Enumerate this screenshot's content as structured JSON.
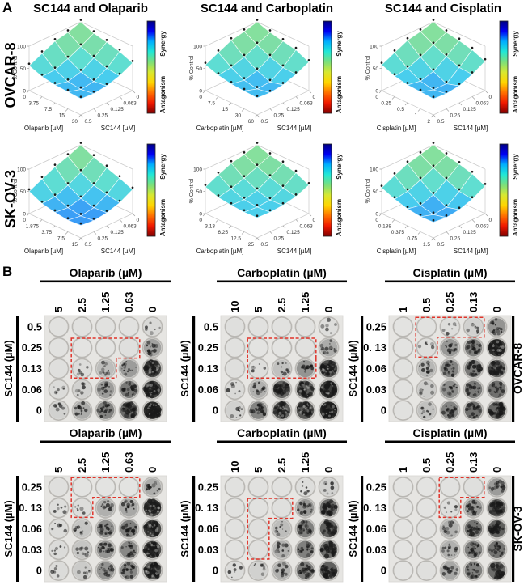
{
  "labels": {
    "panel_a": "A",
    "panel_b": "B"
  },
  "colors": {
    "highlight_dash": "#e0342b",
    "surface_mesh_line": "rgba(255,255,255,0.8)",
    "axis_line": "#c9c9c9",
    "plate_bg": "#e6e5e2",
    "well_ring": "#bfbdb9",
    "well_fill_light": "#ebeae7"
  },
  "chart_data": {
    "panel_a": {
      "type": "surface",
      "row_labels": [
        "OVCAR-8",
        "SK-OV-3"
      ],
      "titles": [
        "SC144 and Olaparib",
        "SC144 and Carboplatin",
        "SC144 and Cisplatin"
      ],
      "z_axis": {
        "label": "% Control",
        "ticks": [
          "0",
          "50",
          "100"
        ],
        "range": [
          0,
          100
        ]
      },
      "sc144_axis": {
        "label": "SC144 [µM]",
        "ticks": [
          "0",
          "0.063",
          "0.125",
          "0.25",
          "0.5"
        ]
      },
      "colorbar": {
        "top_label": "Synergy",
        "bottom_label": "Antagonism",
        "gradient_top_to_bottom": [
          "#00007F",
          "#0000F5",
          "#00AFFF",
          "#22E8D5",
          "#7BE07C",
          "#D8E830",
          "#FFD500",
          "#FF7000",
          "#F01800",
          "#800000"
        ]
      },
      "surface_colormap": {
        "values": [
          100,
          78,
          58,
          42,
          28,
          12
        ],
        "rgb": [
          [
            140,
            225,
            150
          ],
          [
            126,
            222,
            166
          ],
          [
            95,
            222,
            210
          ],
          [
            72,
            205,
            238
          ],
          [
            60,
            165,
            245
          ],
          [
            48,
            112,
            250
          ]
        ]
      },
      "plots": [
        {
          "cell_line": "OVCAR-8",
          "drug": "Olaparib",
          "drug_axis_label": "Olaparib [µM]",
          "drug_ticks": [
            "0",
            "3.75",
            "7.5",
            "15",
            "30"
          ],
          "percent_control_grid": [
            [
              100,
              90,
              84,
              70,
              56
            ],
            [
              88,
              72,
              58,
              47,
              45
            ],
            [
              82,
              60,
              42,
              34,
              40
            ],
            [
              74,
              50,
              34,
              30,
              38
            ],
            [
              62,
              47,
              38,
              34,
              36
            ]
          ]
        },
        {
          "cell_line": "OVCAR-8",
          "drug": "Carboplatin",
          "drug_axis_label": "Carboplatin [µM]",
          "drug_ticks": [
            "0",
            "7.5",
            "15",
            "30",
            "60"
          ],
          "percent_control_grid": [
            [
              100,
              92,
              86,
              72,
              58
            ],
            [
              90,
              76,
              62,
              52,
              48
            ],
            [
              84,
              62,
              45,
              37,
              42
            ],
            [
              78,
              52,
              33,
              31,
              40
            ],
            [
              64,
              50,
              40,
              36,
              38
            ]
          ]
        },
        {
          "cell_line": "OVCAR-8",
          "drug": "Cisplatin",
          "drug_axis_label": "Cisplatin [µM]",
          "drug_ticks": [
            "0",
            "0.25",
            "0.5",
            "1",
            "2"
          ],
          "percent_control_grid": [
            [
              100,
              92,
              86,
              72,
              58
            ],
            [
              90,
              76,
              62,
              50,
              46
            ],
            [
              85,
              63,
              43,
              35,
              40
            ],
            [
              78,
              52,
              29,
              29,
              38
            ],
            [
              66,
              50,
              38,
              34,
              36
            ]
          ]
        },
        {
          "cell_line": "SK-OV-3",
          "drug": "Olaparib",
          "drug_axis_label": "Olaparib [µM]",
          "drug_ticks": [
            "0",
            "1.875",
            "3.75",
            "7.5",
            "15"
          ],
          "percent_control_grid": [
            [
              100,
              88,
              78,
              64,
              50
            ],
            [
              86,
              66,
              50,
              38,
              36
            ],
            [
              76,
              50,
              34,
              27,
              30
            ],
            [
              66,
              43,
              27,
              22,
              26
            ],
            [
              54,
              38,
              29,
              25,
              28
            ]
          ]
        },
        {
          "cell_line": "SK-OV-3",
          "drug": "Carboplatin",
          "drug_axis_label": "Carboplatin [µM]",
          "drug_ticks": [
            "0",
            "3.13",
            "6.25",
            "12.5",
            "25"
          ],
          "percent_control_grid": [
            [
              100,
              92,
              86,
              74,
              60
            ],
            [
              90,
              78,
              66,
              56,
              50
            ],
            [
              85,
              68,
              52,
              45,
              46
            ],
            [
              78,
              58,
              44,
              42,
              44
            ],
            [
              64,
              52,
              46,
              44,
              45
            ]
          ]
        },
        {
          "cell_line": "SK-OV-3",
          "drug": "Cisplatin",
          "drug_axis_label": "Cisplatin [µM]",
          "drug_ticks": [
            "0",
            "0.188",
            "0.375",
            "0.75",
            "1.5"
          ],
          "percent_control_grid": [
            [
              100,
              92,
              85,
              72,
              58
            ],
            [
              90,
              76,
              62,
              50,
              46
            ],
            [
              84,
              62,
              42,
              32,
              38
            ],
            [
              76,
              50,
              28,
              25,
              34
            ],
            [
              62,
              46,
              36,
              32,
              35
            ]
          ]
        }
      ]
    },
    "panel_b": {
      "type": "heatmap",
      "sc144_axis_label": "SC144 (µM)",
      "side_labels": [
        "OVCAR-8",
        "SK-OV-3"
      ],
      "plates": [
        {
          "cell_line": "OVCAR-8",
          "title": "Olaparib (µM)",
          "side_label": null,
          "col_labels": [
            "5",
            "2.5",
            "1.25",
            "0.63",
            "0"
          ],
          "row_labels": [
            "0.5",
            "0.25",
            "0.13",
            "0.06",
            "0"
          ],
          "colony_density": [
            [
              0.04,
              0.04,
              0.04,
              0.04,
              0.08
            ],
            [
              0.04,
              0.03,
              0.03,
              0.05,
              0.35
            ],
            [
              0.05,
              0.06,
              0.22,
              0.38,
              0.78
            ],
            [
              0.07,
              0.12,
              0.38,
              0.55,
              0.82
            ],
            [
              0.12,
              0.3,
              0.5,
              0.62,
              0.92
            ]
          ],
          "synergy_outline_cells": [
            {
              "row": 1,
              "col_start": 1,
              "col_end": 3
            },
            {
              "row": 2,
              "col_start": 1,
              "col_end": 2
            }
          ]
        },
        {
          "cell_line": "OVCAR-8",
          "title": "Carboplatin (µM)",
          "side_label": null,
          "col_labels": [
            "10",
            "5",
            "2.5",
            "1.25",
            "0"
          ],
          "row_labels": [
            "0.5",
            "0.25",
            "0.13",
            "0.06",
            "0"
          ],
          "colony_density": [
            [
              0.05,
              0.04,
              0.04,
              0.04,
              0.06
            ],
            [
              0.04,
              0.03,
              0.03,
              0.04,
              0.3
            ],
            [
              0.05,
              0.06,
              0.2,
              0.42,
              0.75
            ],
            [
              0.08,
              0.28,
              0.65,
              0.7,
              0.85
            ],
            [
              0.12,
              0.5,
              0.7,
              0.72,
              0.9
            ]
          ],
          "synergy_outline_cells": [
            {
              "row": 1,
              "col_start": 1,
              "col_end": 3
            },
            {
              "row": 2,
              "col_start": 1,
              "col_end": 3
            }
          ]
        },
        {
          "cell_line": "OVCAR-8",
          "title": "Cisplatin (µM)",
          "side_label": "OVCAR-8",
          "col_labels": [
            "1",
            "0.5",
            "0.25",
            "0.13",
            "0"
          ],
          "row_labels": [
            "0.25",
            "0. 13",
            "0.06",
            "0.03",
            "0"
          ],
          "colony_density": [
            [
              0.03,
              0.04,
              0.06,
              0.12,
              0.42
            ],
            [
              0.03,
              0.06,
              0.4,
              0.52,
              0.85
            ],
            [
              0.04,
              0.25,
              0.5,
              0.55,
              0.65
            ],
            [
              0.04,
              0.15,
              0.45,
              0.55,
              0.6
            ],
            [
              0.04,
              0.2,
              0.5,
              0.6,
              0.65
            ]
          ],
          "synergy_outline_cells": [
            {
              "row": 0,
              "col_start": 1,
              "col_end": 3
            },
            {
              "row": 1,
              "col_start": 1,
              "col_end": 1
            }
          ]
        },
        {
          "cell_line": "SK-OV-3",
          "title": "Olaparib (µM)",
          "side_label": null,
          "col_labels": [
            "5",
            "2.5",
            "1.25",
            "0.63",
            "0"
          ],
          "row_labels": [
            "0.25",
            "0. 13",
            "0.06",
            "0.03",
            "0"
          ],
          "colony_density": [
            [
              0.05,
              0.03,
              0.03,
              0.03,
              0.3
            ],
            [
              0.06,
              0.06,
              0.28,
              0.32,
              0.8
            ],
            [
              0.07,
              0.18,
              0.45,
              0.52,
              0.82
            ],
            [
              0.07,
              0.18,
              0.42,
              0.48,
              0.78
            ],
            [
              0.07,
              0.15,
              0.42,
              0.48,
              0.72
            ]
          ],
          "synergy_outline_cells": [
            {
              "row": 0,
              "col_start": 1,
              "col_end": 3
            },
            {
              "row": 1,
              "col_start": 1,
              "col_end": 1
            }
          ]
        },
        {
          "cell_line": "SK-OV-3",
          "title": "Carboplatin (µM)",
          "side_label": null,
          "col_labels": [
            "10",
            "5",
            "2.5",
            "1.25",
            "0"
          ],
          "row_labels": [
            "0.25",
            "0. 13",
            "0.06",
            "0.03",
            "0"
          ],
          "colony_density": [
            [
              0.04,
              0.04,
              0.04,
              0.06,
              0.12
            ],
            [
              0.04,
              0.04,
              0.05,
              0.4,
              0.62
            ],
            [
              0.04,
              0.05,
              0.22,
              0.52,
              0.68
            ],
            [
              0.04,
              0.05,
              0.28,
              0.52,
              0.62
            ],
            [
              0.07,
              0.12,
              0.28,
              0.52,
              0.68
            ]
          ],
          "synergy_outline_cells": [
            {
              "row": 1,
              "col_start": 1,
              "col_end": 2
            },
            {
              "row": 2,
              "col_start": 1,
              "col_end": 1
            },
            {
              "row": 3,
              "col_start": 1,
              "col_end": 1
            }
          ]
        },
        {
          "cell_line": "SK-OV-3",
          "title": "Cisplatin (µM)",
          "side_label": "SK-OV-3",
          "col_labels": [
            "1",
            "0.5",
            "0.25",
            "0.13",
            "0"
          ],
          "row_labels": [
            "0.25",
            "0. 13",
            "0.06",
            "0.03",
            "0"
          ],
          "colony_density": [
            [
              0.03,
              0.03,
              0.04,
              0.05,
              0.38
            ],
            [
              0.03,
              0.03,
              0.06,
              0.42,
              0.68
            ],
            [
              0.03,
              0.04,
              0.28,
              0.58,
              0.68
            ],
            [
              0.03,
              0.05,
              0.28,
              0.52,
              0.58
            ],
            [
              0.03,
              0.05,
              0.32,
              0.52,
              0.62
            ]
          ],
          "synergy_outline_cells": [
            {
              "row": 0,
              "col_start": 2,
              "col_end": 3
            },
            {
              "row": 1,
              "col_start": 2,
              "col_end": 2
            }
          ]
        }
      ]
    }
  }
}
